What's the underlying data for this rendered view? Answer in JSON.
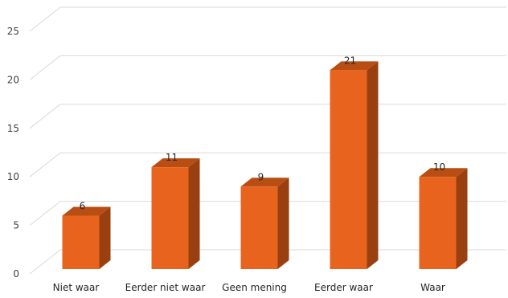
{
  "chart_data": {
    "type": "bar",
    "style": "3d-column",
    "categories": [
      "Niet waar",
      "Eerder niet waar",
      "Geen mening",
      "Eerder waar",
      "Waar"
    ],
    "values": [
      6,
      11,
      9,
      21,
      10
    ],
    "title": "",
    "xlabel": "",
    "ylabel": "",
    "ylim": [
      0,
      25
    ],
    "yticks": [
      0,
      5,
      10,
      15,
      20,
      25
    ],
    "grid": true,
    "legend": "none",
    "colors": {
      "bar_front": "#E8641E",
      "bar_side": "#9A3F0F",
      "bar_top": "#B84E14",
      "grid": "#D9D9D9"
    }
  }
}
